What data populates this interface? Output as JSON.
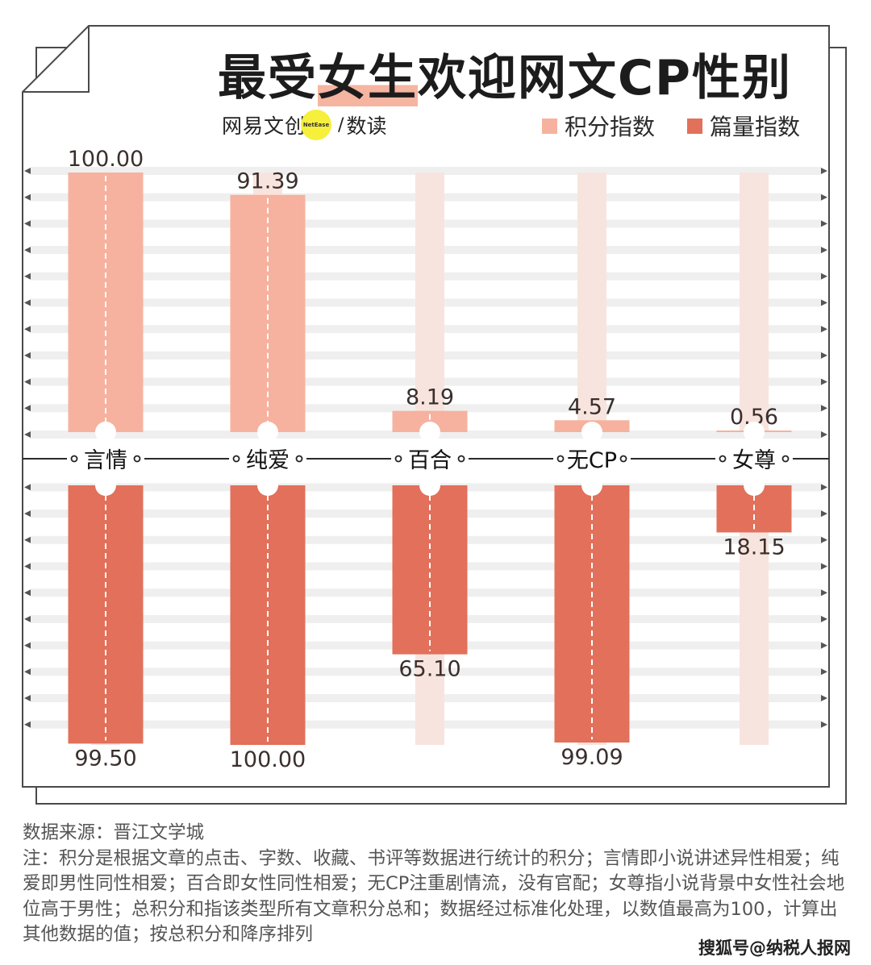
{
  "title_prefix": "最受",
  "title_highlight": "女生",
  "title_suffix": "欢迎网文CP性别",
  "brand": {
    "name": "网易文创",
    "badge": "NetEase",
    "sep": "/",
    "sub": "数读"
  },
  "colors": {
    "score": "#f6b29e",
    "volume": "#e2705a",
    "ghost": "#f8e4de",
    "stripe": "#efefef",
    "text": "#3a2f2c"
  },
  "chart_data": {
    "type": "bar",
    "categories": [
      "言情",
      "纯爱",
      "百合",
      "无CP",
      "女尊"
    ],
    "series": [
      {
        "name": "积分指数",
        "values": [
          100.0,
          91.39,
          8.19,
          4.57,
          0.56
        ],
        "labels": [
          "100.00",
          "91.39",
          "8.19",
          "4.57",
          "0.56"
        ]
      },
      {
        "name": "篇量指数",
        "values": [
          99.5,
          100.0,
          65.1,
          99.09,
          18.15
        ],
        "labels": [
          "99.50",
          "100.00",
          "65.10",
          "99.09",
          "18.15"
        ]
      }
    ],
    "ylim": [
      0,
      100
    ],
    "legend": "top-right",
    "grid": true
  },
  "source_lines": [
    "数据来源：晋江文学城",
    "注：积分是根据文章的点击、字数、收藏、书评等数据进行统计的积分；言情即小说讲述异性相爱；纯爱即男性同性相爱；百合即女性同性相爱；无CP注重剧情流，没有官配；女尊指小说背景中女性社会地位高于男性；总积分和指该类型所有文章积分总和；数据经过标准化处理，以数值最高为100，计算出其他数据的值；按总积分和降序排列"
  ],
  "watermark": "搜狐号@纳税人报网"
}
